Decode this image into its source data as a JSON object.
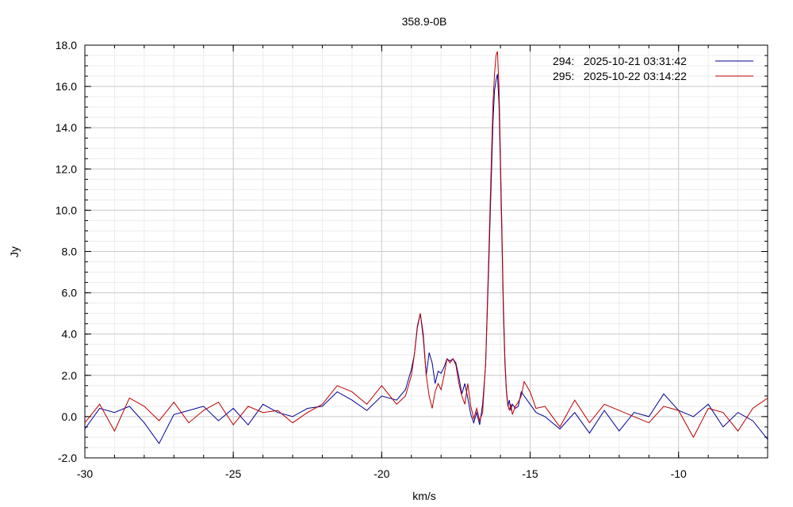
{
  "chart_data": {
    "type": "line",
    "title": "358.9-0B",
    "xlabel": "km/s",
    "ylabel": "Jy",
    "xlim": [
      -30,
      -7
    ],
    "ylim": [
      -2,
      18
    ],
    "x_ticks": [
      -30,
      -25,
      -20,
      -15,
      -10
    ],
    "x_tick_labels": [
      "-30",
      "-25",
      "-20",
      "-15",
      "-10"
    ],
    "y_ticks": [
      -2,
      0,
      2,
      4,
      6,
      8,
      10,
      12,
      14,
      16,
      18
    ],
    "y_tick_labels": [
      "-2.0",
      "0.0",
      "2.0",
      "4.0",
      "6.0",
      "8.0",
      "10.0",
      "12.0",
      "14.0",
      "16.0",
      "18.0"
    ],
    "grid": true,
    "legend_position": "top-right",
    "series": [
      {
        "name": "294:   2025-10-21 03:31:42",
        "color": "#000099",
        "x": [
          -30,
          -29.5,
          -29,
          -28.5,
          -28,
          -27.5,
          -27,
          -26.5,
          -26,
          -25.5,
          -25,
          -24.5,
          -24,
          -23.5,
          -23,
          -22.5,
          -22,
          -21.5,
          -21,
          -20.5,
          -20,
          -19.5,
          -19.2,
          -19,
          -18.9,
          -18.8,
          -18.7,
          -18.6,
          -18.5,
          -18.4,
          -18.3,
          -18.2,
          -18.1,
          -18,
          -17.9,
          -17.8,
          -17.7,
          -17.6,
          -17.5,
          -17.4,
          -17.3,
          -17.2,
          -17.1,
          -17,
          -16.9,
          -16.8,
          -16.7,
          -16.6,
          -16.5,
          -16.4,
          -16.3,
          -16.25,
          -16.2,
          -16.15,
          -16.1,
          -16.05,
          -16,
          -15.95,
          -15.9,
          -15.85,
          -15.8,
          -15.75,
          -15.7,
          -15.65,
          -15.6,
          -15.5,
          -15.4,
          -15.3,
          -15.2,
          -15,
          -14.8,
          -14.5,
          -14,
          -13.5,
          -13,
          -12.5,
          -12,
          -11.5,
          -11,
          -10.5,
          -10,
          -9.5,
          -9,
          -8.5,
          -8,
          -7.5,
          -7
        ],
        "y": [
          -0.6,
          0.4,
          0.2,
          0.5,
          -0.3,
          -1.3,
          0.1,
          0.3,
          0.5,
          -0.2,
          0.4,
          -0.4,
          0.6,
          0.2,
          0.0,
          0.4,
          0.5,
          1.2,
          0.8,
          0.3,
          1.0,
          0.8,
          1.3,
          2.3,
          3.0,
          4.3,
          5.0,
          3.8,
          2.0,
          3.1,
          2.6,
          1.6,
          2.2,
          2.1,
          2.4,
          2.8,
          2.7,
          2.8,
          2.6,
          1.9,
          1.1,
          1.6,
          0.9,
          0.1,
          -0.3,
          0.2,
          -0.4,
          0.6,
          2.5,
          7.0,
          12.0,
          14.3,
          15.8,
          16.3,
          16.6,
          15.2,
          12.0,
          8.5,
          5.0,
          2.6,
          1.2,
          0.5,
          0.8,
          0.3,
          0.6,
          0.4,
          0.5,
          1.2,
          1.0,
          0.6,
          0.2,
          0.0,
          -0.6,
          0.2,
          -0.8,
          0.3,
          -0.7,
          0.2,
          0.0,
          1.1,
          0.3,
          0.0,
          0.6,
          -0.5,
          0.2,
          -0.2,
          -1.1
        ]
      },
      {
        "name": "295:   2025-10-22 03:14:22",
        "color": "#bb0000",
        "x": [
          -30,
          -29.5,
          -29,
          -28.5,
          -28,
          -27.5,
          -27,
          -26.5,
          -26,
          -25.5,
          -25,
          -24.5,
          -24,
          -23.5,
          -23,
          -22.5,
          -22,
          -21.5,
          -21,
          -20.5,
          -20,
          -19.5,
          -19.2,
          -19,
          -18.9,
          -18.8,
          -18.7,
          -18.6,
          -18.5,
          -18.4,
          -18.3,
          -18.2,
          -18.1,
          -18,
          -17.9,
          -17.8,
          -17.7,
          -17.6,
          -17.5,
          -17.4,
          -17.3,
          -17.2,
          -17.1,
          -17,
          -16.9,
          -16.8,
          -16.7,
          -16.6,
          -16.5,
          -16.4,
          -16.3,
          -16.25,
          -16.2,
          -16.15,
          -16.1,
          -16.05,
          -16,
          -15.95,
          -15.9,
          -15.85,
          -15.8,
          -15.75,
          -15.7,
          -15.65,
          -15.6,
          -15.5,
          -15.4,
          -15.3,
          -15.2,
          -15,
          -14.8,
          -14.5,
          -14,
          -13.5,
          -13,
          -12.5,
          -12,
          -11.5,
          -11,
          -10.5,
          -10,
          -9.5,
          -9,
          -8.5,
          -8,
          -7.5,
          -7
        ],
        "y": [
          -0.3,
          0.6,
          -0.7,
          0.9,
          0.5,
          -0.2,
          0.7,
          -0.3,
          0.3,
          0.7,
          -0.4,
          0.5,
          0.2,
          0.3,
          -0.3,
          0.2,
          0.6,
          1.5,
          1.2,
          0.6,
          1.5,
          0.6,
          1.0,
          2.0,
          3.0,
          4.4,
          5.0,
          4.0,
          2.0,
          1.0,
          0.4,
          1.2,
          1.6,
          1.3,
          2.0,
          2.8,
          2.6,
          2.8,
          2.5,
          1.6,
          1.0,
          0.6,
          1.6,
          0.5,
          -0.1,
          0.4,
          -0.2,
          0.2,
          2.6,
          7.5,
          12.8,
          15.2,
          16.6,
          17.5,
          17.7,
          16.0,
          12.5,
          9.0,
          5.5,
          2.8,
          1.3,
          0.6,
          0.3,
          0.6,
          0.1,
          0.5,
          0.7,
          1.0,
          1.7,
          1.2,
          0.4,
          0.5,
          -0.5,
          0.8,
          -0.3,
          0.6,
          0.3,
          0.0,
          -0.3,
          0.5,
          0.3,
          -1.0,
          0.4,
          0.2,
          -0.7,
          0.4,
          0.9
        ]
      }
    ]
  }
}
